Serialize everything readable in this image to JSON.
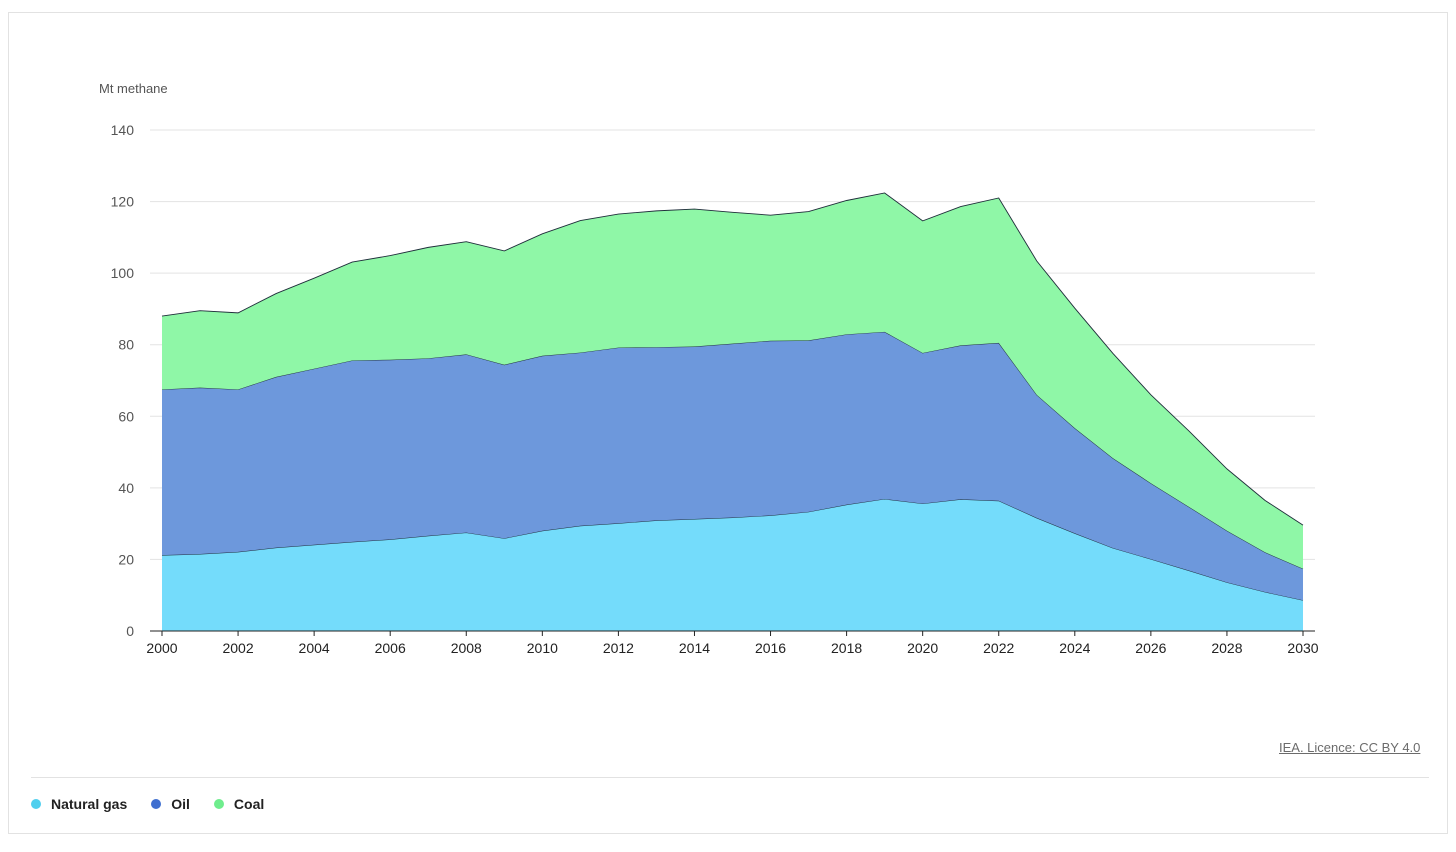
{
  "chart_data": {
    "type": "area",
    "stacked": true,
    "ylabel": "Mt methane",
    "ylim": [
      0,
      140
    ],
    "yticks": [
      0,
      20,
      40,
      60,
      80,
      100,
      120,
      140
    ],
    "xlim": [
      2000,
      2030
    ],
    "xticks": [
      2000,
      2002,
      2004,
      2006,
      2008,
      2010,
      2012,
      2014,
      2016,
      2018,
      2020,
      2022,
      2024,
      2026,
      2028,
      2030
    ],
    "x": [
      2000,
      2001,
      2002,
      2003,
      2004,
      2005,
      2006,
      2007,
      2008,
      2009,
      2010,
      2011,
      2012,
      2013,
      2014,
      2015,
      2016,
      2017,
      2018,
      2019,
      2020,
      2021,
      2022,
      2023,
      2024,
      2025,
      2026,
      2027,
      2028,
      2029,
      2030
    ],
    "series": [
      {
        "name": "Natural gas",
        "color": "#74dcfb",
        "values": [
          21.2,
          21.5,
          22.1,
          23.3,
          24.1,
          24.9,
          25.6,
          26.6,
          27.5,
          25.9,
          28.0,
          29.4,
          30.1,
          30.9,
          31.3,
          31.7,
          32.3,
          33.3,
          35.3,
          36.9,
          35.6,
          36.8,
          36.4,
          31.6,
          27.3,
          23.2,
          20.1,
          16.9,
          13.6,
          10.9,
          8.6
        ]
      },
      {
        "name": "Oil",
        "color": "#6d98dc",
        "values": [
          46.3,
          46.5,
          45.4,
          47.7,
          49.2,
          50.7,
          50.2,
          49.6,
          49.8,
          48.5,
          48.9,
          48.4,
          49.1,
          48.4,
          48.2,
          48.6,
          48.8,
          47.9,
          47.6,
          46.7,
          42.1,
          43.0,
          44.1,
          34.4,
          29.4,
          25.1,
          21.2,
          17.8,
          14.4,
          11.1,
          8.8
        ]
      },
      {
        "name": "Coal",
        "color": "#8ff7a7",
        "values": [
          20.5,
          21.5,
          21.4,
          23.3,
          25.3,
          27.5,
          29.1,
          31.0,
          31.5,
          31.8,
          34.1,
          36.9,
          37.3,
          38.1,
          38.4,
          36.7,
          35.1,
          36.0,
          37.4,
          38.8,
          36.9,
          38.8,
          40.5,
          37.4,
          33.5,
          29.3,
          24.7,
          21.2,
          17.3,
          14.5,
          12.2
        ]
      }
    ]
  },
  "credit": "IEA. Licence: CC BY 4.0",
  "legend": [
    {
      "label": "Natural gas",
      "color": "#4fcfee"
    },
    {
      "label": "Oil",
      "color": "#3f6fd0"
    },
    {
      "label": "Coal",
      "color": "#6fed8d"
    }
  ]
}
